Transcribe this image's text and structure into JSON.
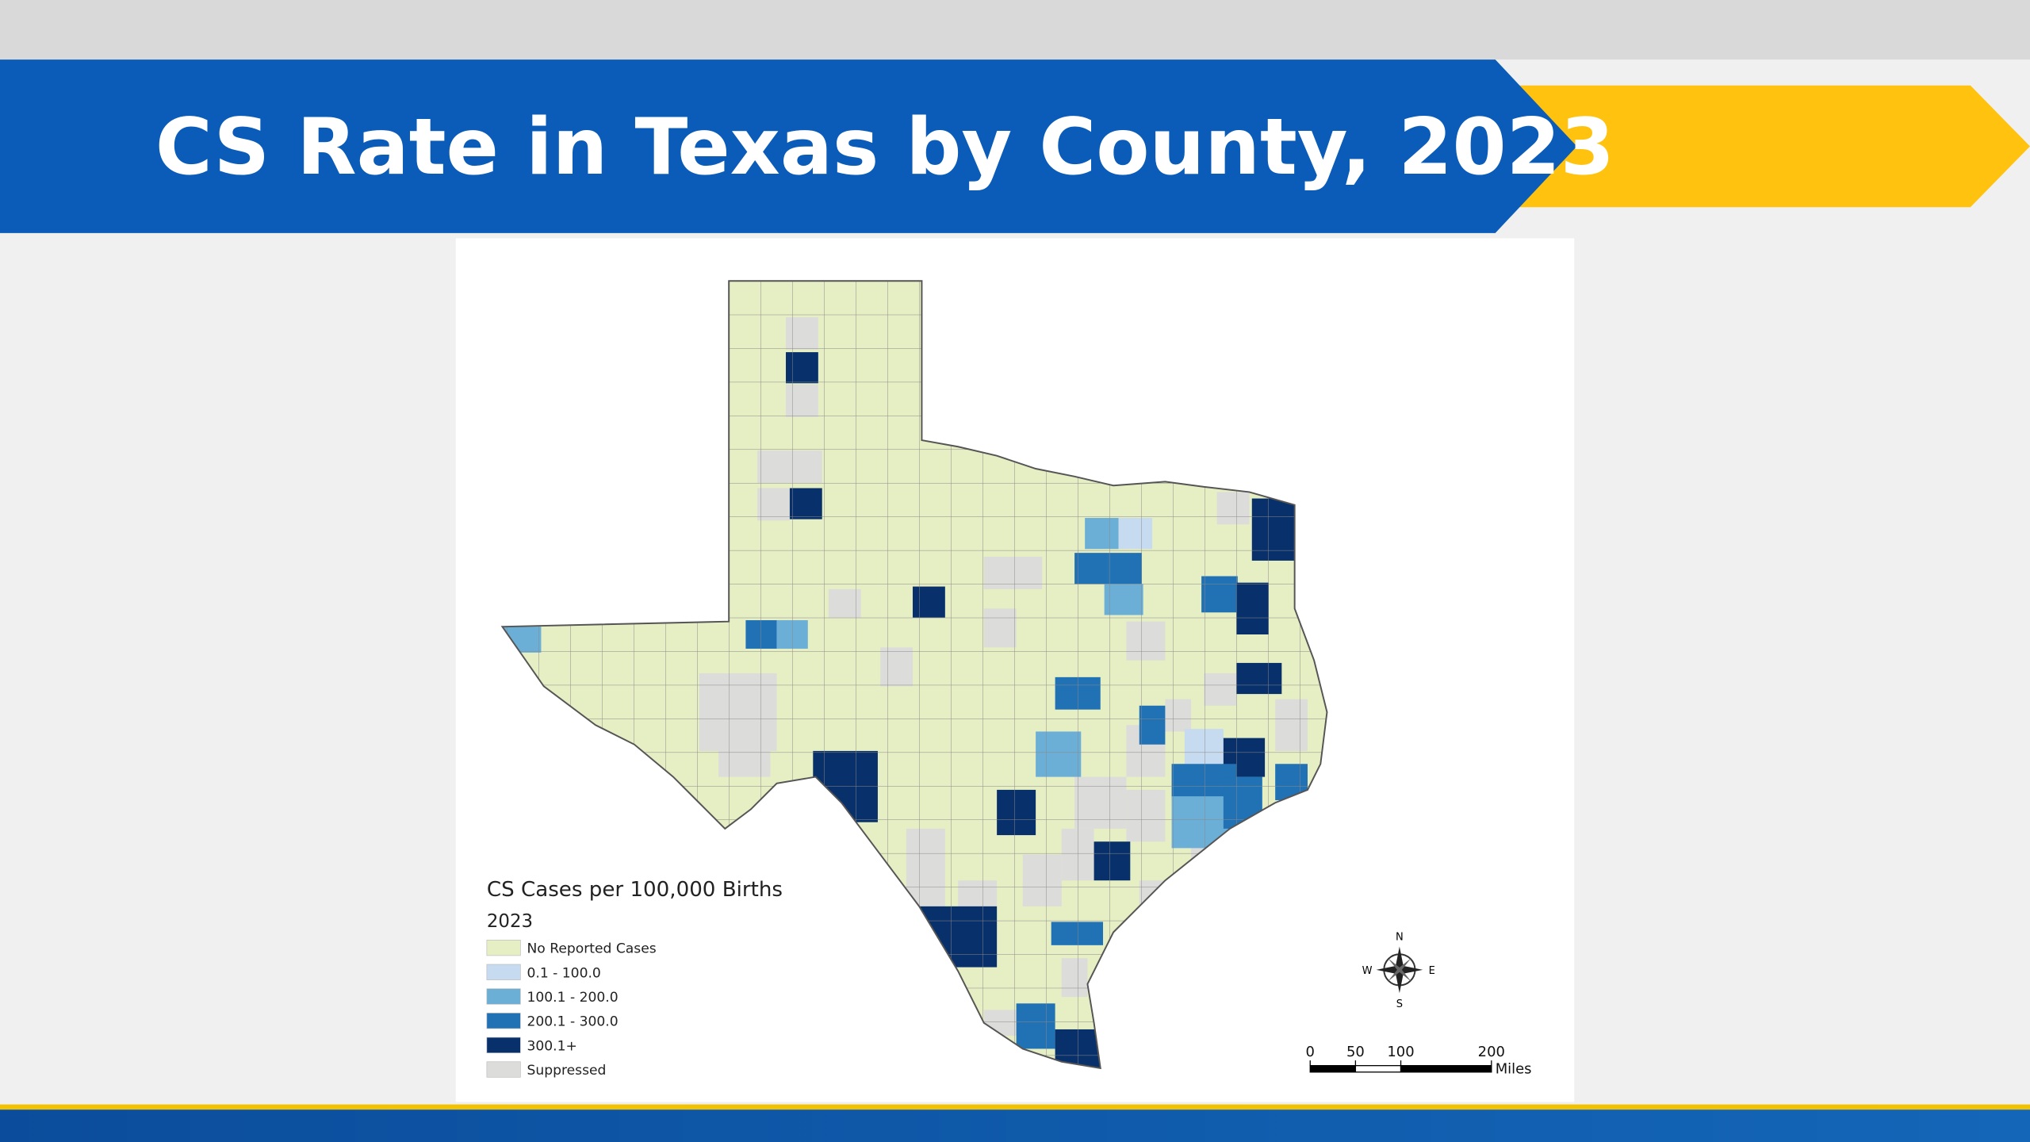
{
  "header": {
    "title": "CS Rate in Texas by County, 2023"
  },
  "map": {
    "legend": {
      "title": "CS Cases per 100,000 Births",
      "year": "2023",
      "items": [
        {
          "label": "No Reported Cases",
          "color": "#e6eec4"
        },
        {
          "label": "0.1 - 100.0",
          "color": "#c6dbef"
        },
        {
          "label": "100.1 - 200.0",
          "color": "#6baed6"
        },
        {
          "label": "200.1 - 300.0",
          "color": "#2171b5"
        },
        {
          "label": "300.1+",
          "color": "#08306b"
        },
        {
          "label": "Suppressed",
          "color": "#dcdcda"
        }
      ]
    },
    "compass": {
      "n": "N",
      "s": "S",
      "e": "E",
      "w": "W"
    },
    "scale_bar": {
      "ticks": [
        0,
        50,
        100,
        200
      ],
      "unit": "Miles"
    }
  }
}
